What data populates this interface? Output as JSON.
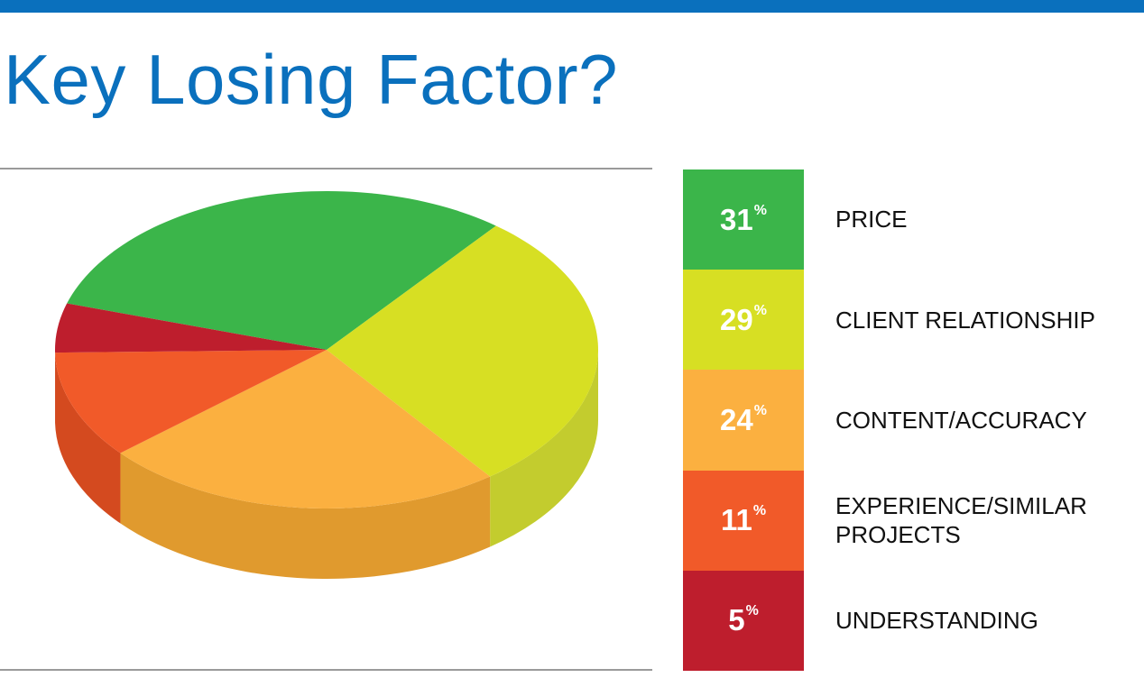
{
  "title": "Key Losing Factor?",
  "colors": {
    "header_bar": "#0a70bd",
    "title": "#0a70bd"
  },
  "chart_data": {
    "type": "pie",
    "title": "Key Losing Factor?",
    "unit": "%",
    "percent_symbol": "%",
    "slices": [
      {
        "label": "PRICE",
        "value": 31,
        "value_text": "31",
        "color": "#3bb54a",
        "side_color": "#2f9e3f"
      },
      {
        "label": "CLIENT RELATIONSHIP",
        "value": 29,
        "value_text": "29",
        "color": "#d7df23",
        "side_color": "#c3cc2e"
      },
      {
        "label": "CONTENT/ACCURACY",
        "value": 24,
        "value_text": "24",
        "color": "#fbb040",
        "side_color": "#e09a2e"
      },
      {
        "label": "EXPERIENCE/SIMILAR\nPROJECTS",
        "value": 11,
        "value_text": "11",
        "color": "#f15a29",
        "side_color": "#d44a1f"
      },
      {
        "label": "UNDERSTANDING",
        "value": 5,
        "value_text": "5",
        "color": "#be1e2d",
        "side_color": "#9e1824"
      }
    ],
    "style": "3d-pie",
    "legend_position": "right"
  }
}
